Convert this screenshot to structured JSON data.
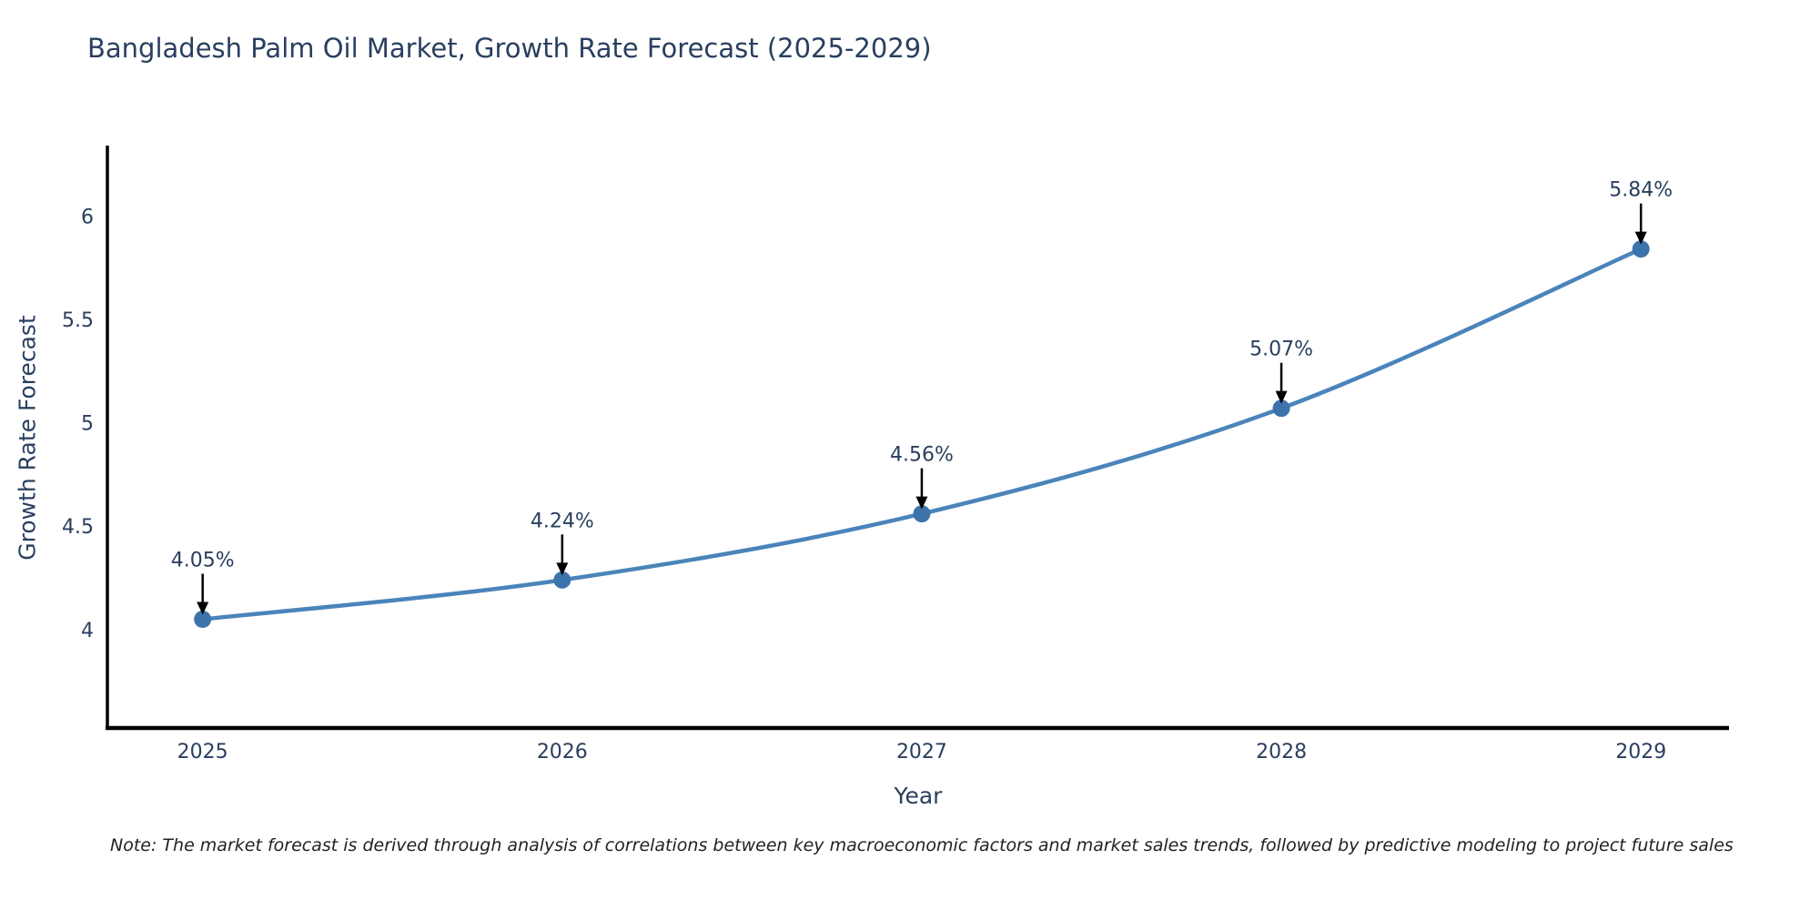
{
  "page": {
    "background": "#ffffff"
  },
  "chart_data": {
    "type": "line",
    "title": "Bangladesh Palm Oil Market, Growth Rate Forecast (2025-2029)",
    "xlabel": "Year",
    "ylabel": "Growth Rate Forecast",
    "x": [
      2025,
      2026,
      2027,
      2028,
      2029
    ],
    "values": [
      4.05,
      4.24,
      4.56,
      5.07,
      5.84
    ],
    "point_labels": [
      "4.05%",
      "4.24%",
      "4.56%",
      "5.07%",
      "5.84%"
    ],
    "x_ticks": [
      "2025",
      "2026",
      "2027",
      "2028",
      "2029"
    ],
    "y_ticks": [
      4,
      4.5,
      5,
      5.5,
      6
    ],
    "x_range": [
      2024.73,
      2029.25
    ],
    "y_range": [
      3.52,
      6.34
    ],
    "grid": false,
    "legend_position": "none",
    "line_smoothing": "spline",
    "colors": {
      "line": "#4a84ba",
      "marker": "#3c73ab",
      "axis": "#000000",
      "tick_label": "#2a3f5f",
      "annotation_text": "#2a3f5f",
      "annotation_arrow": "#000000"
    },
    "note": "Note: The market forecast is derived through analysis of correlations between key macroeconomic factors and market sales trends, followed by predictive modeling to project future sales"
  }
}
